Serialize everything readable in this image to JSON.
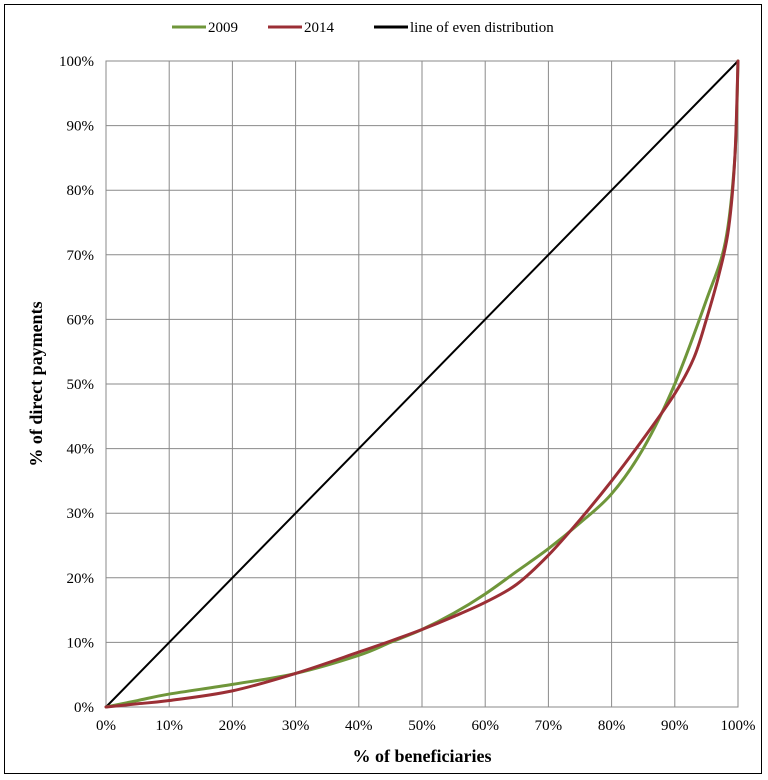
{
  "chart_data": {
    "type": "line",
    "title": "",
    "xlabel": "% of beneficiaries",
    "ylabel": "% of direct payments",
    "xlim": [
      0,
      100
    ],
    "ylim": [
      0,
      100
    ],
    "x_ticks": [
      "0%",
      "10%",
      "20%",
      "30%",
      "40%",
      "50%",
      "60%",
      "70%",
      "80%",
      "90%",
      "100%"
    ],
    "y_ticks": [
      "0%",
      "10%",
      "20%",
      "30%",
      "40%",
      "50%",
      "60%",
      "70%",
      "80%",
      "90%",
      "100%"
    ],
    "grid": true,
    "legend_position": "top",
    "series": [
      {
        "name": "2009",
        "color": "#6f963a",
        "x": [
          0,
          5,
          10,
          20,
          30,
          40,
          45,
          50,
          55,
          60,
          65,
          70,
          75,
          80,
          85,
          90,
          95,
          98,
          99.5,
          100
        ],
        "y": [
          0,
          1,
          2,
          3.5,
          5.2,
          8,
          10,
          12,
          14.5,
          17.5,
          21,
          24.5,
          28.5,
          33,
          40,
          50,
          63,
          72,
          85,
          100
        ]
      },
      {
        "name": "2014",
        "color": "#9b2f35",
        "x": [
          0,
          5,
          10,
          20,
          30,
          40,
          45,
          50,
          55,
          60,
          65,
          70,
          75,
          80,
          85,
          90,
          93,
          95,
          97,
          98.5,
          99.5,
          100
        ],
        "y": [
          0,
          0.5,
          1,
          2.5,
          5.2,
          8.5,
          10.2,
          12,
          14,
          16.2,
          19,
          23.5,
          29,
          35,
          41.5,
          48.5,
          54,
          60,
          67,
          74,
          85,
          100
        ]
      },
      {
        "name": "line of even distribution",
        "color": "#000000",
        "x": [
          0,
          100
        ],
        "y": [
          0,
          100
        ]
      }
    ]
  }
}
